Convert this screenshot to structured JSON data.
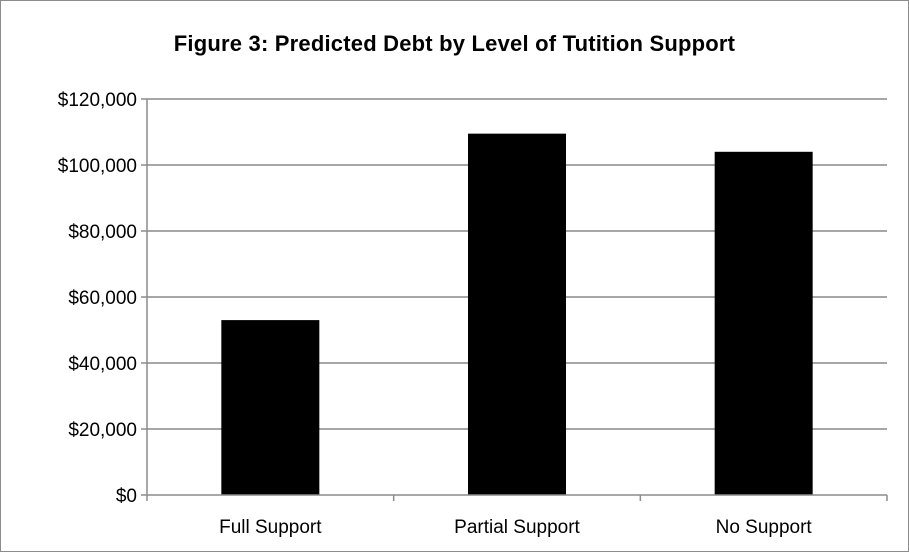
{
  "chart_data": {
    "type": "bar",
    "title": "Figure 3: Predicted Debt by Level of Tutition Support",
    "categories": [
      "Full Support",
      "Partial Support",
      "No Support"
    ],
    "values": [
      53000,
      109500,
      104000
    ],
    "ylim": [
      0,
      120000
    ],
    "yticks": [
      0,
      20000,
      40000,
      60000,
      80000,
      100000,
      120000
    ],
    "ytick_labels": [
      "$0",
      "$20,000",
      "$40,000",
      "$60,000",
      "$80,000",
      "$100,000",
      "$120,000"
    ],
    "xlabel": "",
    "ylabel": "",
    "grid": true,
    "legend": "none",
    "bar_color": "#000000",
    "grid_color": "#a6a6a6"
  }
}
